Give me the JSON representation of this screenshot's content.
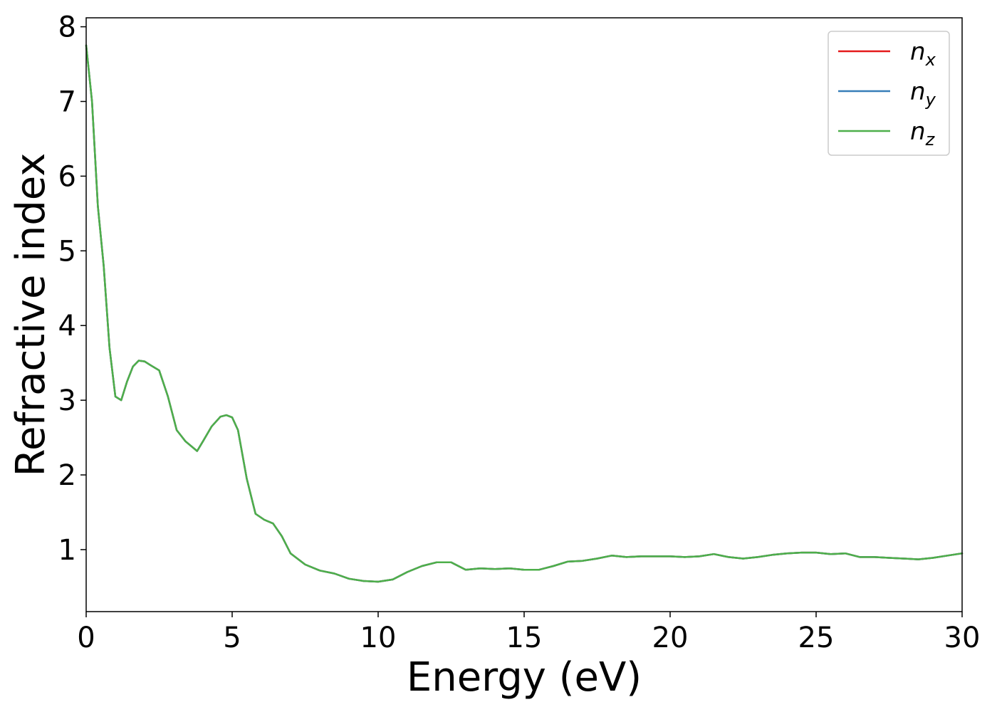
{
  "chart_data": {
    "type": "line",
    "title": "",
    "xlabel": "Energy (eV)",
    "ylabel": "Refractive index",
    "xlim": [
      0,
      30
    ],
    "ylim": [
      0.17,
      8.12
    ],
    "xticks": [
      0,
      5,
      10,
      15,
      20,
      25,
      30
    ],
    "yticks": [
      1,
      2,
      3,
      4,
      5,
      6,
      7,
      8
    ],
    "grid": false,
    "legend_position": "top-right",
    "series": [
      {
        "name": "n_x",
        "legend_base": "n",
        "legend_sub": "x",
        "color": "#e41a1c",
        "x": [
          0,
          0.2,
          0.4,
          0.6,
          0.8,
          1.0,
          1.2,
          1.4,
          1.6,
          1.8,
          2.0,
          2.2,
          2.5,
          2.8,
          3.1,
          3.4,
          3.8,
          4.0,
          4.3,
          4.6,
          4.8,
          5.0,
          5.2,
          5.5,
          5.8,
          6.1,
          6.4,
          6.7,
          7.0,
          7.5,
          8.0,
          8.5,
          9.0,
          9.5,
          10.0,
          10.5,
          11.0,
          11.5,
          12.0,
          12.5,
          13.0,
          13.5,
          14.0,
          14.5,
          15.0,
          15.5,
          16.0,
          16.5,
          17.0,
          17.5,
          18.0,
          18.5,
          19.0,
          19.5,
          20.0,
          20.5,
          21.0,
          21.5,
          22.0,
          22.5,
          23.0,
          23.5,
          24.0,
          24.5,
          25.0,
          25.5,
          26.0,
          26.5,
          27.0,
          27.5,
          28.0,
          28.5,
          29.0,
          29.5,
          30.0
        ],
        "y": [
          7.75,
          7.0,
          5.6,
          4.8,
          3.7,
          3.05,
          3.0,
          3.25,
          3.45,
          3.53,
          3.52,
          3.47,
          3.4,
          3.05,
          2.6,
          2.45,
          2.32,
          2.45,
          2.65,
          2.78,
          2.8,
          2.77,
          2.6,
          1.95,
          1.48,
          1.4,
          1.35,
          1.18,
          0.95,
          0.8,
          0.72,
          0.68,
          0.61,
          0.58,
          0.57,
          0.6,
          0.7,
          0.78,
          0.83,
          0.83,
          0.73,
          0.75,
          0.74,
          0.75,
          0.73,
          0.73,
          0.78,
          0.84,
          0.85,
          0.88,
          0.92,
          0.9,
          0.91,
          0.91,
          0.91,
          0.9,
          0.91,
          0.94,
          0.9,
          0.88,
          0.9,
          0.93,
          0.95,
          0.96,
          0.96,
          0.94,
          0.95,
          0.9,
          0.9,
          0.89,
          0.88,
          0.87,
          0.89,
          0.92,
          0.95
        ]
      },
      {
        "name": "n_y",
        "legend_base": "n",
        "legend_sub": "y",
        "color": "#377eb8",
        "x": [
          0,
          0.2,
          0.4,
          0.6,
          0.8,
          1.0,
          1.2,
          1.4,
          1.6,
          1.8,
          2.0,
          2.2,
          2.5,
          2.8,
          3.1,
          3.4,
          3.8,
          4.0,
          4.3,
          4.6,
          4.8,
          5.0,
          5.2,
          5.5,
          5.8,
          6.1,
          6.4,
          6.7,
          7.0,
          7.5,
          8.0,
          8.5,
          9.0,
          9.5,
          10.0,
          10.5,
          11.0,
          11.5,
          12.0,
          12.5,
          13.0,
          13.5,
          14.0,
          14.5,
          15.0,
          15.5,
          16.0,
          16.5,
          17.0,
          17.5,
          18.0,
          18.5,
          19.0,
          19.5,
          20.0,
          20.5,
          21.0,
          21.5,
          22.0,
          22.5,
          23.0,
          23.5,
          24.0,
          24.5,
          25.0,
          25.5,
          26.0,
          26.5,
          27.0,
          27.5,
          28.0,
          28.5,
          29.0,
          29.5,
          30.0
        ],
        "y": [
          7.75,
          7.0,
          5.6,
          4.8,
          3.7,
          3.05,
          3.0,
          3.25,
          3.45,
          3.53,
          3.52,
          3.47,
          3.4,
          3.05,
          2.6,
          2.45,
          2.32,
          2.45,
          2.65,
          2.78,
          2.8,
          2.77,
          2.6,
          1.95,
          1.48,
          1.4,
          1.35,
          1.18,
          0.95,
          0.8,
          0.72,
          0.68,
          0.61,
          0.58,
          0.57,
          0.6,
          0.7,
          0.78,
          0.83,
          0.83,
          0.73,
          0.75,
          0.74,
          0.75,
          0.73,
          0.73,
          0.78,
          0.84,
          0.85,
          0.88,
          0.92,
          0.9,
          0.91,
          0.91,
          0.91,
          0.9,
          0.91,
          0.94,
          0.9,
          0.88,
          0.9,
          0.93,
          0.95,
          0.96,
          0.96,
          0.94,
          0.95,
          0.9,
          0.9,
          0.89,
          0.88,
          0.87,
          0.89,
          0.92,
          0.95
        ]
      },
      {
        "name": "n_z",
        "legend_base": "n",
        "legend_sub": "z",
        "color": "#4daf4a",
        "x": [
          0,
          0.2,
          0.4,
          0.6,
          0.8,
          1.0,
          1.2,
          1.4,
          1.6,
          1.8,
          2.0,
          2.2,
          2.5,
          2.8,
          3.1,
          3.4,
          3.8,
          4.0,
          4.3,
          4.6,
          4.8,
          5.0,
          5.2,
          5.5,
          5.8,
          6.1,
          6.4,
          6.7,
          7.0,
          7.5,
          8.0,
          8.5,
          9.0,
          9.5,
          10.0,
          10.5,
          11.0,
          11.5,
          12.0,
          12.5,
          13.0,
          13.5,
          14.0,
          14.5,
          15.0,
          15.5,
          16.0,
          16.5,
          17.0,
          17.5,
          18.0,
          18.5,
          19.0,
          19.5,
          20.0,
          20.5,
          21.0,
          21.5,
          22.0,
          22.5,
          23.0,
          23.5,
          24.0,
          24.5,
          25.0,
          25.5,
          26.0,
          26.5,
          27.0,
          27.5,
          28.0,
          28.5,
          29.0,
          29.5,
          30.0
        ],
        "y": [
          7.75,
          7.0,
          5.6,
          4.8,
          3.7,
          3.05,
          3.0,
          3.25,
          3.45,
          3.53,
          3.52,
          3.47,
          3.4,
          3.05,
          2.6,
          2.45,
          2.32,
          2.45,
          2.65,
          2.78,
          2.8,
          2.77,
          2.6,
          1.95,
          1.48,
          1.4,
          1.35,
          1.18,
          0.95,
          0.8,
          0.72,
          0.68,
          0.61,
          0.58,
          0.57,
          0.6,
          0.7,
          0.78,
          0.83,
          0.83,
          0.73,
          0.75,
          0.74,
          0.75,
          0.73,
          0.73,
          0.78,
          0.84,
          0.85,
          0.88,
          0.92,
          0.9,
          0.91,
          0.91,
          0.91,
          0.9,
          0.91,
          0.94,
          0.9,
          0.88,
          0.9,
          0.93,
          0.95,
          0.96,
          0.96,
          0.94,
          0.95,
          0.9,
          0.9,
          0.89,
          0.88,
          0.87,
          0.89,
          0.92,
          0.95
        ]
      }
    ]
  }
}
